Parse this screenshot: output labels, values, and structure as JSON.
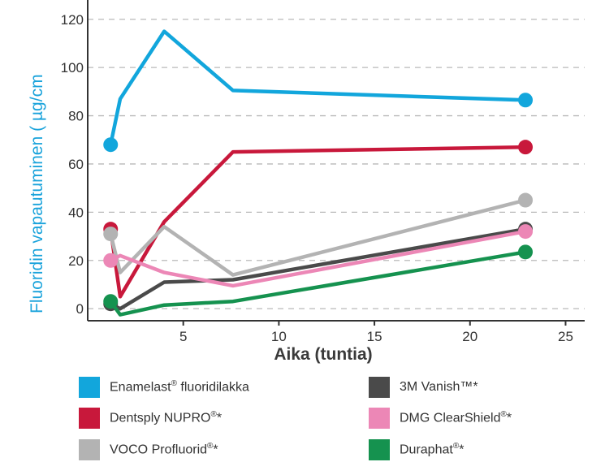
{
  "chart_data": {
    "type": "line",
    "xlabel": "Aika (tuntia)",
    "ylabel": "Fluoridin vapautuminen ( µg/cm",
    "xlim": [
      0,
      26
    ],
    "ylim": [
      -5,
      128
    ],
    "x_ticks": [
      5,
      10,
      15,
      20,
      25
    ],
    "y_ticks": [
      0,
      20,
      40,
      60,
      80,
      100,
      120
    ],
    "grid": "horizontal-dashed",
    "series": [
      {
        "name": "Enamelast® fluoridilakka",
        "color": "#12a6dc",
        "x": [
          1.2,
          1.7,
          4,
          7.6,
          22.9
        ],
        "y": [
          68,
          87,
          115,
          90.5,
          86.5
        ],
        "markers": [
          1.2,
          22.9
        ]
      },
      {
        "name": "Dentsply NUPRO®*",
        "color": "#c8183b",
        "x": [
          1.2,
          1.7,
          4,
          7.6,
          22.9
        ],
        "y": [
          33,
          5,
          36,
          65,
          67
        ],
        "markers": [
          1.2,
          22.9
        ]
      },
      {
        "name": "VOCO Profluorid®*",
        "color": "#b3b3b3",
        "x": [
          1.2,
          1.7,
          4,
          7.6,
          22.9
        ],
        "y": [
          31,
          15,
          34,
          14,
          45
        ],
        "markers": [
          1.2,
          22.9
        ]
      },
      {
        "name": "3M Vanish™*",
        "color": "#4a4a4a",
        "x": [
          1.2,
          1.7,
          4,
          7.6,
          22.9
        ],
        "y": [
          2,
          0,
          11,
          12,
          33
        ],
        "markers": [
          1.2,
          22.9
        ]
      },
      {
        "name": "DMG ClearShield®*",
        "color": "#ec87b6",
        "x": [
          1.2,
          1.7,
          4,
          7.6,
          22.9
        ],
        "y": [
          20,
          22,
          15,
          9.5,
          32
        ],
        "markers": [
          1.2,
          22.9
        ]
      },
      {
        "name": "Duraphat®*",
        "color": "#15924f",
        "x": [
          1.2,
          1.7,
          4,
          7.6,
          22.9
        ],
        "y": [
          3,
          -2.5,
          1.5,
          3,
          23.5
        ],
        "markers": [
          1.2,
          22.9
        ]
      }
    ]
  },
  "legend": [
    {
      "base": "Enamelast",
      "sup": "®",
      "rest": " fluoridilakka",
      "color": "#12a6dc"
    },
    {
      "base": "3M Vanish™*",
      "sup": "",
      "rest": "",
      "color": "#4a4a4a"
    },
    {
      "base": "Dentsply NUPRO",
      "sup": "®",
      "rest": "*",
      "color": "#c8183b"
    },
    {
      "base": "DMG ClearShield",
      "sup": "®",
      "rest": "*",
      "color": "#ec87b6"
    },
    {
      "base": "VOCO Profluorid",
      "sup": "®",
      "rest": "*",
      "color": "#b3b3b3"
    },
    {
      "base": "Duraphat",
      "sup": "®",
      "rest": "*",
      "color": "#15924f"
    }
  ]
}
